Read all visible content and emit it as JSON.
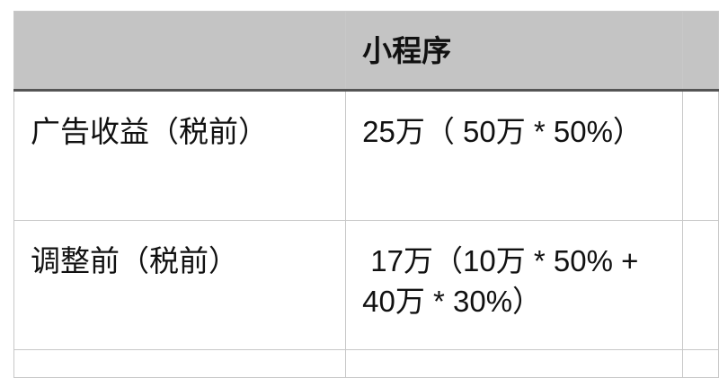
{
  "table": {
    "headers": [
      "",
      "小程序",
      ""
    ],
    "rows": [
      [
        "广告收益（税前）",
        "25万（ 50万 * 50%）",
        ""
      ],
      [
        "调整前（税前）",
        " 17万（10万 * 50% + 40万 * 30%）",
        ""
      ],
      [
        "",
        "",
        ""
      ]
    ]
  },
  "colors": {
    "header_bg": "#c4c4c4",
    "border": "#c8c8c8",
    "header_rule": "#555555"
  }
}
